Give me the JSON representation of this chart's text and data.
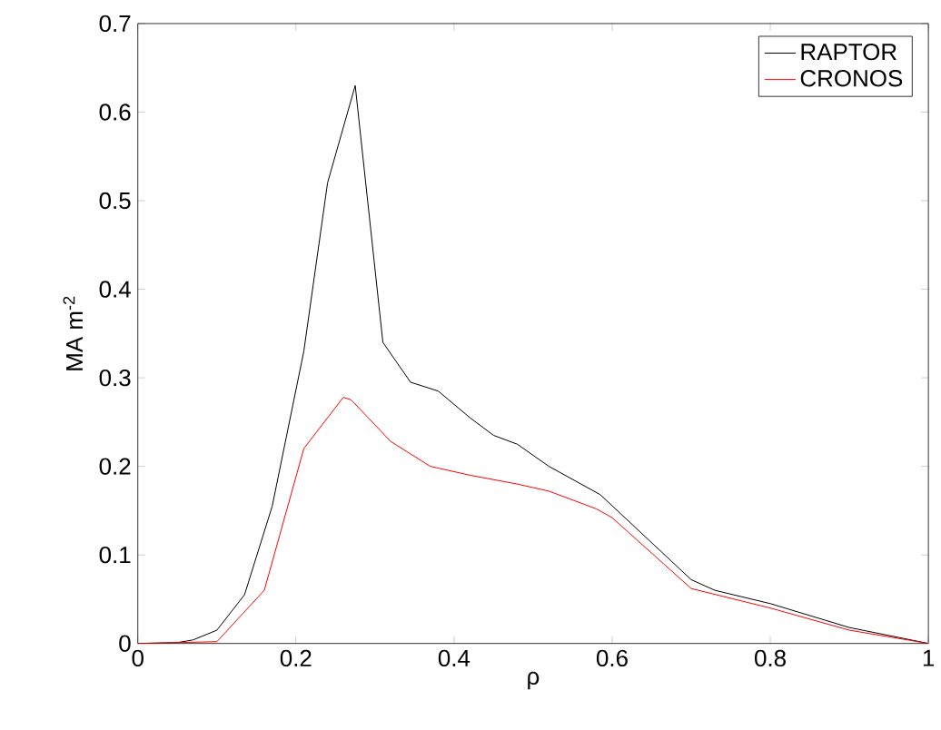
{
  "chart_data": {
    "type": "line",
    "xlabel": "ρ",
    "ylabel": "MA m$^{-2}$",
    "xlim": [
      0,
      1
    ],
    "ylim": [
      0,
      0.7
    ],
    "xticks": [
      0,
      0.2,
      0.4,
      0.6,
      0.8,
      1
    ],
    "yticks": [
      0,
      0.1,
      0.2,
      0.3,
      0.4,
      0.5,
      0.6,
      0.7
    ],
    "legend": "top right",
    "grid": false,
    "series": [
      {
        "name": "RAPTOR",
        "color": "#000000",
        "x": [
          0,
          0.05,
          0.07,
          0.1,
          0.135,
          0.17,
          0.21,
          0.24,
          0.275,
          0.31,
          0.345,
          0.38,
          0.42,
          0.45,
          0.48,
          0.52,
          0.585,
          0.7,
          0.73,
          0.8,
          0.9,
          1
        ],
        "values": [
          0,
          0.001,
          0.004,
          0.015,
          0.055,
          0.155,
          0.33,
          0.52,
          0.63,
          0.34,
          0.295,
          0.285,
          0.255,
          0.235,
          0.225,
          0.2,
          0.168,
          0.072,
          0.06,
          0.045,
          0.018,
          0
        ]
      },
      {
        "name": "CRONOS",
        "color": "#ff0000",
        "x": [
          0,
          0.1,
          0.16,
          0.21,
          0.26,
          0.27,
          0.32,
          0.37,
          0.42,
          0.48,
          0.52,
          0.58,
          0.6,
          0.7,
          0.8,
          0.9,
          1
        ],
        "values": [
          0,
          0.002,
          0.06,
          0.22,
          0.278,
          0.275,
          0.228,
          0.2,
          0.19,
          0.18,
          0.172,
          0.152,
          0.142,
          0.062,
          0.04,
          0.015,
          0
        ]
      }
    ]
  }
}
